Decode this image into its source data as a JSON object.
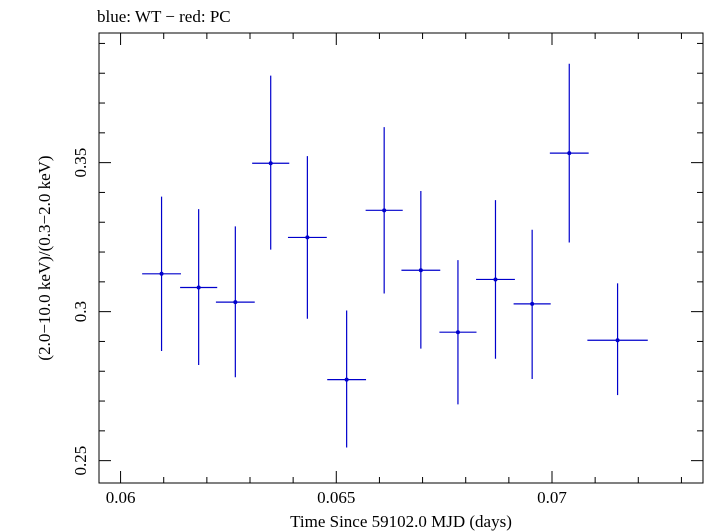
{
  "chart_data": {
    "type": "scatter",
    "title": "blue: WT − red: PC",
    "xlabel": "Time Since 59102.0 MJD (days)",
    "ylabel": "(2.0−10.0 keV)/(0.3−2.0 keV)",
    "xlim": [
      0.0595,
      0.0735
    ],
    "ylim": [
      0.2425,
      0.3935
    ],
    "x_ticks": [
      0.06,
      0.065,
      0.07
    ],
    "x_tick_labels": [
      "0.06",
      "0.065",
      "0.07"
    ],
    "y_ticks": [
      0.25,
      0.3,
      0.35
    ],
    "y_tick_labels": [
      "0.25",
      "0.3",
      "0.35"
    ],
    "grid": false,
    "series": [
      {
        "color": "#0000cc",
        "points": [
          {
            "x": 0.06095,
            "y": 0.3127,
            "xerr": 0.00045,
            "yerr_lo": 0.0259,
            "yerr_hi": 0.0259
          },
          {
            "x": 0.06181,
            "y": 0.3081,
            "xerr": 0.00043,
            "yerr_lo": 0.026,
            "yerr_hi": 0.0263
          },
          {
            "x": 0.06266,
            "y": 0.3032,
            "xerr": 0.00045,
            "yerr_lo": 0.0252,
            "yerr_hi": 0.0254
          },
          {
            "x": 0.06348,
            "y": 0.3498,
            "xerr": 0.00043,
            "yerr_lo": 0.029,
            "yerr_hi": 0.0294
          },
          {
            "x": 0.06433,
            "y": 0.3249,
            "xerr": 0.00045,
            "yerr_lo": 0.0273,
            "yerr_hi": 0.0273
          },
          {
            "x": 0.06524,
            "y": 0.2772,
            "xerr": 0.00045,
            "yerr_lo": 0.0228,
            "yerr_hi": 0.0232
          },
          {
            "x": 0.06611,
            "y": 0.334,
            "xerr": 0.00043,
            "yerr_lo": 0.0279,
            "yerr_hi": 0.0279
          },
          {
            "x": 0.06696,
            "y": 0.3139,
            "xerr": 0.00045,
            "yerr_lo": 0.0263,
            "yerr_hi": 0.0266
          },
          {
            "x": 0.06782,
            "y": 0.2931,
            "xerr": 0.00043,
            "yerr_lo": 0.0242,
            "yerr_hi": 0.0242
          },
          {
            "x": 0.06869,
            "y": 0.3108,
            "xerr": 0.00045,
            "yerr_lo": 0.0266,
            "yerr_hi": 0.0266
          },
          {
            "x": 0.06954,
            "y": 0.3026,
            "xerr": 0.00043,
            "yerr_lo": 0.0252,
            "yerr_hi": 0.0249
          },
          {
            "x": 0.0704,
            "y": 0.3532,
            "xerr": 0.00045,
            "yerr_lo": 0.03,
            "yerr_hi": 0.03
          },
          {
            "x": 0.07152,
            "y": 0.2904,
            "xerr": 0.0007,
            "yerr_lo": 0.0184,
            "yerr_hi": 0.0191
          }
        ]
      }
    ]
  }
}
